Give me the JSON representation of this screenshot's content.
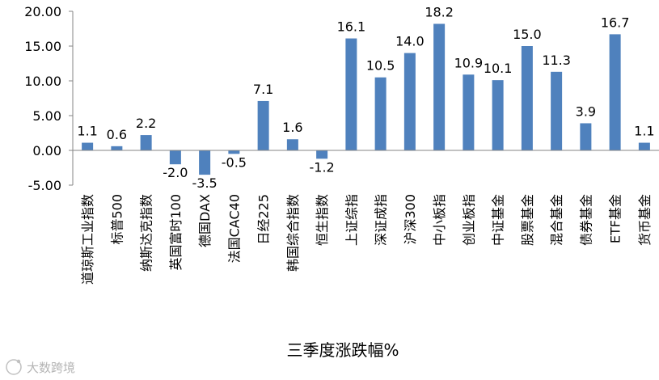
{
  "chart_data": {
    "type": "bar",
    "title": "",
    "xlabel": "三季度涨跌幅%",
    "ylabel": "",
    "ylim": [
      -5,
      20
    ],
    "yticks": [
      -5,
      0,
      5,
      10,
      15,
      20
    ],
    "ytick_labels": [
      "-5.00",
      "0.00",
      "5.00",
      "10.00",
      "15.00",
      "20.00"
    ],
    "grid": false,
    "bar_color": "#4f81bd",
    "categories": [
      "道琼斯工业指数",
      "标普500",
      "纳斯达克指数",
      "英国富时100",
      "德国DAX",
      "法国CAC40",
      "日经225",
      "韩国综合指数",
      "恒生指数",
      "上证综指",
      "深证成指",
      "沪深300",
      "中小板指",
      "创业板指",
      "中证基金",
      "股票基金",
      "混合基金",
      "债券基金",
      "ETF基金",
      "货币基金"
    ],
    "values": [
      1.1,
      0.6,
      2.2,
      -2.0,
      -3.5,
      -0.5,
      7.1,
      1.6,
      -1.2,
      16.1,
      10.5,
      14.0,
      18.2,
      10.9,
      10.1,
      15.0,
      11.3,
      3.9,
      16.7,
      1.1
    ],
    "value_labels": [
      "1.1",
      "0.6",
      "2.2",
      "-2.0",
      "-3.5",
      "-0.5",
      "7.1",
      "1.6",
      "-1.2",
      "16.1",
      "10.5",
      "14.0",
      "18.2",
      "10.9",
      "10.1",
      "15.0",
      "11.3",
      "3.9",
      "16.7",
      "1.1"
    ]
  },
  "watermark": "大数跨境"
}
